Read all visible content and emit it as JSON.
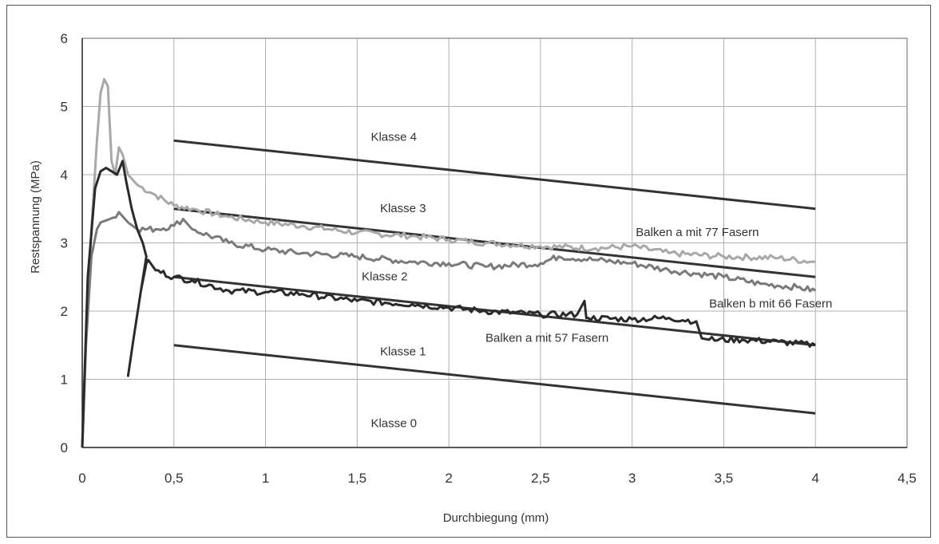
{
  "chart_data": {
    "type": "line",
    "title": "",
    "xlabel": "Durchbiegung (mm)",
    "ylabel": "Restspannung (MPa)",
    "xlim": [
      0,
      4.5
    ],
    "ylim": [
      0,
      6
    ],
    "x_ticks": [
      "0",
      "0,5",
      "1",
      "1,5",
      "2",
      "2,5",
      "3",
      "3,5",
      "4",
      "4,5"
    ],
    "y_ticks": [
      "0",
      "1",
      "2",
      "3",
      "4",
      "5",
      "6"
    ],
    "grid": true,
    "legend": "none",
    "class_lines": [
      {
        "label": "Klasse 1",
        "x": [
          0.5,
          4
        ],
        "y": [
          1.5,
          0.5
        ]
      },
      {
        "label": "Klasse 2",
        "x": [
          0.5,
          4
        ],
        "y": [
          2.5,
          1.5
        ]
      },
      {
        "label": "Klasse 3",
        "x": [
          0.5,
          4
        ],
        "y": [
          3.5,
          2.5
        ]
      },
      {
        "label": "Klasse 4",
        "x": [
          0.5,
          4
        ],
        "y": [
          4.5,
          3.5
        ]
      }
    ],
    "region_labels": [
      {
        "text": "Klasse 4",
        "x": 1.7,
        "y": 4.5
      },
      {
        "text": "Klasse 3",
        "x": 1.75,
        "y": 3.45
      },
      {
        "text": "Klasse 2",
        "x": 1.65,
        "y": 2.45
      },
      {
        "text": "Klasse 1",
        "x": 1.75,
        "y": 1.35
      },
      {
        "text": "Klasse 0",
        "x": 1.7,
        "y": 0.3
      }
    ],
    "series": [
      {
        "name": "Balken a mit 77 Fasern",
        "color": "#a8a8a8",
        "x": [
          0,
          0.02,
          0.05,
          0.08,
          0.1,
          0.12,
          0.14,
          0.16,
          0.18,
          0.2,
          0.22,
          0.25,
          0.3,
          0.4,
          0.5,
          0.6,
          0.8,
          1,
          1.2,
          1.5,
          1.8,
          2,
          2.2,
          2.5,
          2.8,
          3,
          3.2,
          3.5,
          3.8,
          4
        ],
        "y": [
          0,
          1.5,
          3.2,
          4.5,
          5.2,
          5.4,
          5.3,
          4.2,
          4.0,
          4.4,
          4.3,
          4.0,
          3.85,
          3.7,
          3.55,
          3.5,
          3.38,
          3.3,
          3.25,
          3.15,
          3.1,
          3.05,
          3.0,
          2.95,
          2.92,
          2.95,
          2.85,
          2.8,
          2.78,
          2.72
        ]
      },
      {
        "name": "Balken b mit 66 Fasern",
        "color": "#7a7a7a",
        "x": [
          0,
          0.02,
          0.05,
          0.08,
          0.1,
          0.15,
          0.2,
          0.25,
          0.3,
          0.4,
          0.5,
          0.55,
          0.6,
          0.8,
          1,
          1.2,
          1.5,
          1.8,
          2,
          2.2,
          2.5,
          2.6,
          2.8,
          3,
          3.2,
          3.5,
          3.7,
          3.9,
          4
        ],
        "y": [
          0,
          1.5,
          2.8,
          3.2,
          3.3,
          3.35,
          3.45,
          3.3,
          3.2,
          3.2,
          3.25,
          3.35,
          3.2,
          3.0,
          2.9,
          2.85,
          2.8,
          2.72,
          2.7,
          2.65,
          2.7,
          2.8,
          2.75,
          2.7,
          2.6,
          2.5,
          2.4,
          2.35,
          2.3
        ]
      },
      {
        "name": "Balken a mit 57 Fasern",
        "color": "#2a2a2a",
        "x": [
          0,
          0.03,
          0.07,
          0.1,
          0.13,
          0.16,
          0.19,
          0.22,
          0.24,
          0.27,
          0.3,
          0.33,
          0.35,
          0.32,
          0.28,
          0.25,
          0.28,
          0.32,
          0.35,
          0.36,
          0.4,
          0.5,
          0.6,
          0.8,
          1,
          1.2,
          1.5,
          1.8,
          2,
          2.2,
          2.5,
          2.7,
          2.74,
          2.75,
          2.76,
          3,
          3.2,
          3.35,
          3.38,
          3.42,
          3.6,
          3.8,
          4
        ],
        "y": [
          0,
          2.5,
          3.8,
          4.05,
          4.1,
          4.05,
          4.0,
          4.2,
          3.9,
          3.5,
          3.2,
          3.0,
          2.8,
          2.3,
          1.6,
          1.05,
          1.6,
          2.3,
          2.7,
          2.75,
          2.6,
          2.5,
          2.45,
          2.3,
          2.28,
          2.25,
          2.15,
          2.1,
          2.05,
          2.0,
          1.95,
          1.95,
          2.15,
          1.9,
          1.9,
          1.88,
          1.9,
          1.85,
          1.6,
          1.58,
          1.58,
          1.55,
          1.5
        ]
      }
    ],
    "series_labels": [
      {
        "text": "Balken a mit 77 Fasern",
        "x": 3.02,
        "y": 3.1
      },
      {
        "text": "Balken b mit 66 Fasern",
        "x": 3.42,
        "y": 2.05
      },
      {
        "text": "Balken a mit 57 Fasern",
        "x": 2.2,
        "y": 1.55
      }
    ]
  }
}
